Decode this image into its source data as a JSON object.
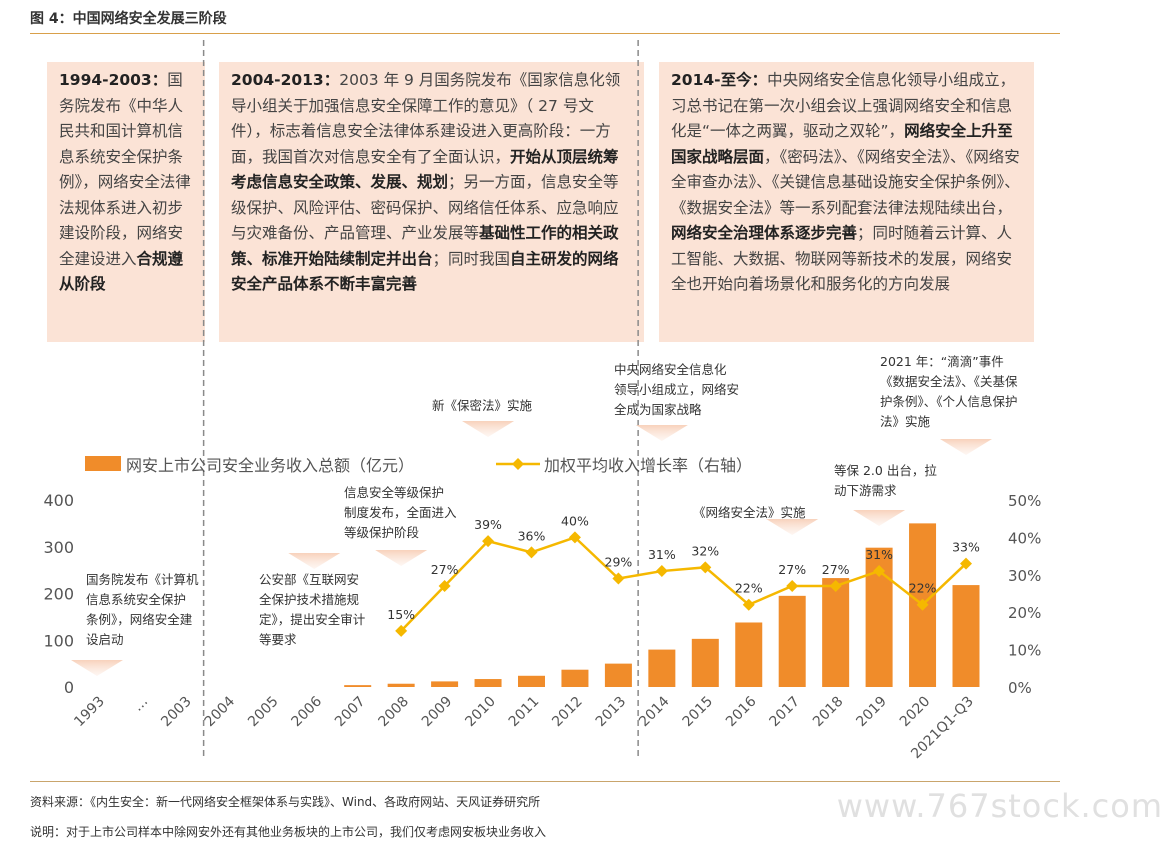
{
  "figure_title": "图 4：中国网络安全发展三阶段",
  "phases": [
    {
      "lead": "1994-2003：",
      "body": "国务院发布《中华人民共和国计算机信息系统安全保护条例》，网络安全法律法规体系进入初步建设阶段，网络安全建设进入",
      "bold": "合规遵从阶段"
    },
    {
      "lead": "2004-2013：",
      "p1": "2003 年 9 月国务院发布《国家信息化领导小组关于加强信息安全保障工作的意见》（ 27 号文件），标志着信息安全法律体系建设进入更高阶段：一方面，我国首次对信息安全有了全面认识，",
      "b1": "开始从顶层统筹考虑信息安全政策、发展、规划",
      "p2": "；另一方面，信息安全等级保护、风险评估、密码保护、网络信任体系、应急响应与灾难备份、产品管理、产业发展等",
      "b2": "基础性工作的相关政策、标准开始陆续制定并出台",
      "p3": "；同时我国",
      "b3": "自主研发的网络安全产品体系不断丰富完善"
    },
    {
      "lead": "2014-至今：",
      "p1": "中央网络安全信息化领导小组成立，习总书记在第一次小组会议上强调网络安全和信息化是“一体之两翼，驱动之双轮”，",
      "b1": "网络安全上升至国家战略层面",
      "p2": "，《密码法》、《网络安全法》、《网络安全审查办法》、《关键信息基础设施安全保护条例》、《数据安全法》等一系列配套法律法规陆续出台，",
      "b2": "网络安全治理体系逐步完善",
      "p3": "；同时随着云计算、人工智能、大数据、物联网等新技术的发展，网络安全也开始向着场景化和服务化的方向发展"
    }
  ],
  "annotations": {
    "a1994": [
      "国务院发布《计算机",
      "信息系统安全保护",
      "条例》，网络安全建",
      "设启动"
    ],
    "a2005": [
      "公安部《互联网安",
      "全保护技术措施规",
      "定》，提出安全审计",
      "等要求"
    ],
    "a2008": [
      "信息安全等级保护",
      "制度发布，全面进入",
      "等级保护阶段"
    ],
    "a2010": [
      "新《保密法》实施"
    ],
    "a2014": [
      "中央网络安全信息化",
      "领导小组成立，网络安",
      "全成为国家战略"
    ],
    "a2016": [
      "《网络安全法》实施"
    ],
    "a2019": [
      "等保 2.0 出台，拉",
      "动下游需求"
    ],
    "a2021": [
      "2021 年：“滴滴”事件",
      "《数据安全法》、《关基保",
      "护条例》、《个人信息保护",
      "法》实施"
    ]
  },
  "legend": {
    "bar": "网安上市公司安全业务收入总额（亿元）",
    "line": "加权平均收入增长率（右轴）"
  },
  "colors": {
    "bar": "#f08c2a",
    "line": "#f5b800",
    "box": "#fbe3d6",
    "rule": "#d9a04a"
  },
  "footer": {
    "source": "资料来源：《内生安全：新一代网络安全框架体系与实践》、Wind、各政府网站、天风证券研究所",
    "note": "说明：对于上市公司样本中除网安外还有其他业务板块的上市公司，我们仅考虑网安板块业务收入"
  },
  "watermark": "www.767stock.com",
  "chart_data": {
    "type": "bar",
    "categories": [
      "1993",
      "…",
      "2003",
      "2004",
      "2005",
      "2006",
      "2007",
      "2008",
      "2009",
      "2010",
      "2011",
      "2012",
      "2013",
      "2014",
      "2015",
      "2016",
      "2017",
      "2018",
      "2019",
      "2020",
      "2021Q1-Q3"
    ],
    "series": [
      {
        "name": "网安上市公司安全业务收入总额（亿元）",
        "type": "bar",
        "axis": "left",
        "values": [
          null,
          null,
          null,
          null,
          null,
          null,
          4,
          7,
          12,
          17,
          24,
          37,
          50,
          80,
          103,
          138,
          195,
          233,
          298,
          350,
          218
        ]
      },
      {
        "name": "加权平均收入增长率（右轴）",
        "type": "line",
        "axis": "right",
        "values": [
          null,
          null,
          null,
          null,
          null,
          null,
          null,
          15,
          27,
          39,
          36,
          40,
          29,
          31,
          32,
          22,
          27,
          27,
          31,
          22,
          33
        ],
        "labels": [
          null,
          null,
          null,
          null,
          null,
          null,
          null,
          "15%",
          "27%",
          "39%",
          "36%",
          "40%",
          "29%",
          "31%",
          "32%",
          "22%",
          "27%",
          "27%",
          "31%",
          "22%",
          "33%"
        ]
      }
    ],
    "left_ticks": [
      "0",
      "100",
      "200",
      "300",
      "400"
    ],
    "right_ticks": [
      "0%",
      "10%",
      "20%",
      "30%",
      "40%",
      "50%"
    ],
    "ylim_left": [
      0,
      400
    ],
    "ylim_right": [
      0,
      50
    ],
    "phase_dividers_after": [
      "2003",
      "2013"
    ],
    "grid": false,
    "legend_position": "top"
  }
}
